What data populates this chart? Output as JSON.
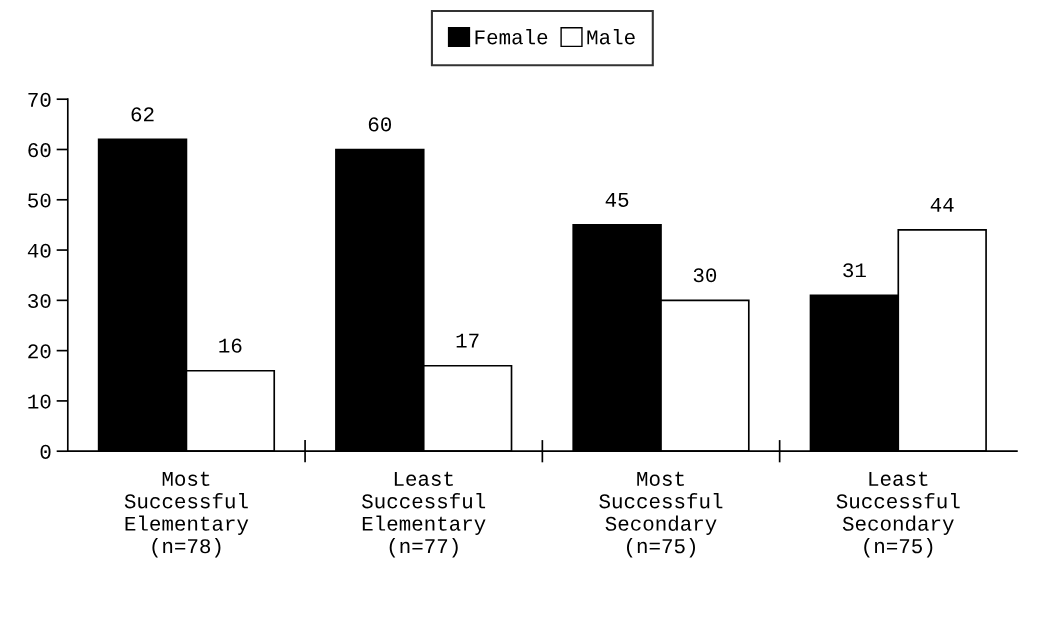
{
  "chart_data": {
    "type": "bar",
    "categories": [
      "Most\nSuccessful\nElementary\n(n=78)",
      "Least\nSuccessful\nElementary\n(n=77)",
      "Most\nSuccessful\nSecondary\n(n=75)",
      "Least\nSuccessful\nSecondary\n(n=75)"
    ],
    "series": [
      {
        "name": "Female",
        "color": "#000000",
        "values": [
          62,
          60,
          45,
          31
        ]
      },
      {
        "name": "Male",
        "color": "#ffffff",
        "values": [
          16,
          17,
          30,
          44
        ]
      }
    ],
    "ylim": [
      0,
      70
    ],
    "yticks": [
      0,
      10,
      20,
      30,
      40,
      50,
      60,
      70
    ],
    "data_labels": true,
    "legend": "top",
    "grid": false
  }
}
